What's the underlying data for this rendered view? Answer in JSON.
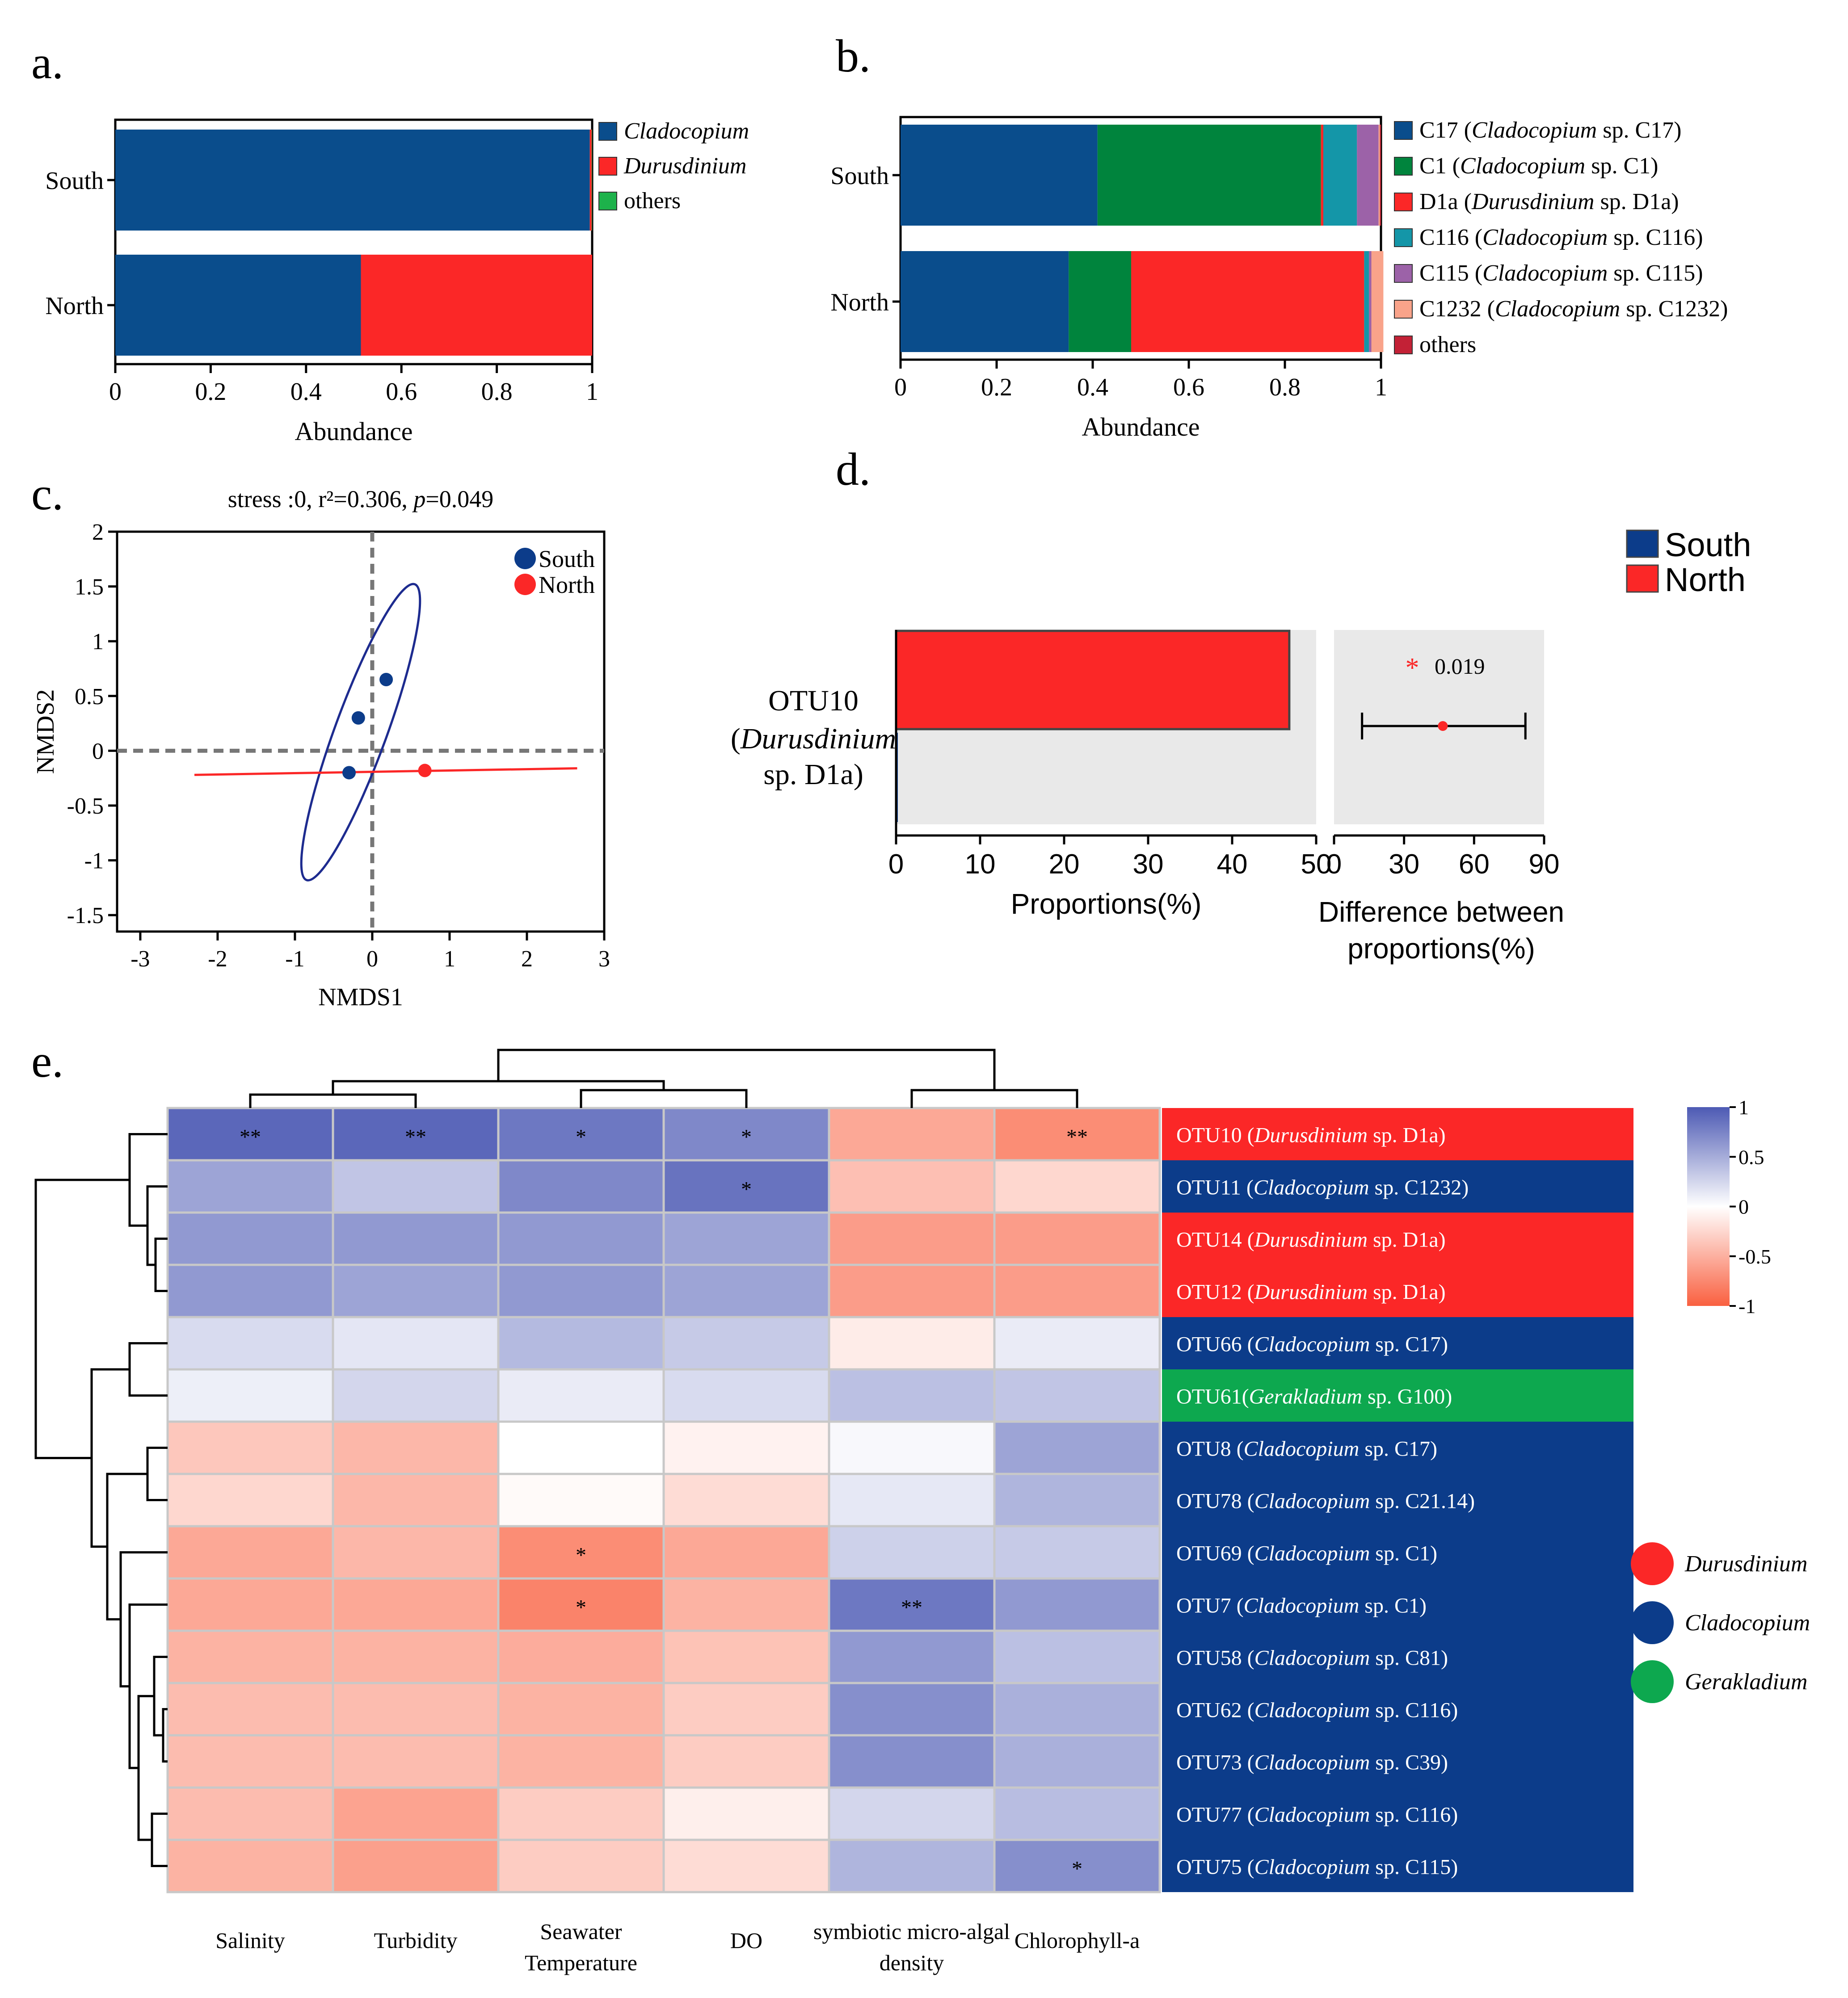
{
  "colors": {
    "blue": "#0a4d8c",
    "red": "#fb2727",
    "green": "#1db24b",
    "darkgreen": "#00843d",
    "teal": "#1496a8",
    "purple": "#9c62a8",
    "salmon": "#f9a38a",
    "darkred": "#c32136",
    "rowblue": "#0c3c8a",
    "rowgreen": "#0da84f",
    "panelgray": "#e9e9e9"
  },
  "chart_data": [
    {
      "panel": "a.",
      "type": "bar",
      "orientation": "horizontal-stacked",
      "categories": [
        "South",
        "North"
      ],
      "series": [
        {
          "name": "Cladocopium",
          "color_key": "blue",
          "values": [
            0.995,
            0.515
          ]
        },
        {
          "name": "Durusdinium",
          "color_key": "red",
          "values": [
            0.004,
            0.485
          ]
        },
        {
          "name": "others",
          "color_key": "green",
          "values": [
            0.001,
            0.0
          ]
        }
      ],
      "xlabel": "Abundance",
      "xticks": [
        "0",
        "0.2",
        "0.4",
        "0.6",
        "0.8",
        "1"
      ],
      "xlim": [
        0,
        1
      ]
    },
    {
      "panel": "b.",
      "type": "bar",
      "orientation": "horizontal-stacked",
      "categories": [
        "South",
        "North"
      ],
      "series": [
        {
          "name_main": "C17 (",
          "name_italic": "Cladocopium",
          "name_tail": " sp. C17)",
          "color_key": "blue",
          "values": [
            0.41,
            0.35
          ]
        },
        {
          "name_main": "C1 (",
          "name_italic": "Cladocopium",
          "name_tail": " sp. C1)",
          "color_key": "darkgreen",
          "values": [
            0.465,
            0.13
          ]
        },
        {
          "name_main": "D1a (",
          "name_italic": "Durusdinium",
          "name_tail": " sp. D1a)",
          "color_key": "red",
          "values": [
            0.005,
            0.485
          ]
        },
        {
          "name_main": "C116 (",
          "name_italic": "Cladocopium",
          "name_tail": " sp. C116)",
          "color_key": "teal",
          "values": [
            0.07,
            0.01
          ]
        },
        {
          "name_main": "C115 (",
          "name_italic": "Cladocopium",
          "name_tail": " sp. C115)",
          "color_key": "purple",
          "values": [
            0.045,
            0.005
          ]
        },
        {
          "name_main": "C1232 (",
          "name_italic": "Cladocopium",
          "name_tail": " sp. C1232)",
          "color_key": "salmon",
          "values": [
            0.003,
            0.025
          ]
        },
        {
          "name_main": "others",
          "name_italic": "",
          "name_tail": "",
          "color_key": "darkred",
          "values": [
            0.002,
            0.0
          ]
        }
      ],
      "xlabel": "Abundance",
      "xticks": [
        "0",
        "0.2",
        "0.4",
        "0.6",
        "0.8",
        "1"
      ],
      "xlim": [
        0,
        1
      ]
    },
    {
      "panel": "c.",
      "type": "scatter",
      "title_main": "stress :0, r²=0.306, ",
      "title_p": "p",
      "title_tail": "=0.049",
      "xlabel": "NMDS1",
      "ylabel": "NMDS2",
      "xlim": [
        -3.3,
        3
      ],
      "ylim": [
        -1.65,
        2
      ],
      "xticks": [
        -3,
        -2,
        -1,
        0,
        1,
        2,
        3
      ],
      "yticks": [
        -1.5,
        -1,
        -0.5,
        0,
        0.5,
        1,
        1.5,
        2
      ],
      "xtick_labels": [
        "-3",
        "-2",
        "-1",
        "0",
        "1",
        "2",
        "3"
      ],
      "ytick_labels": [
        "-1.5",
        "-1",
        "-0.5",
        "0",
        "0.5",
        "1",
        "1.5",
        "2"
      ],
      "groups": [
        {
          "name": "South",
          "color_key": "rowblue",
          "points": [
            [
              0.18,
              0.65
            ],
            [
              -0.18,
              0.3
            ],
            [
              -0.3,
              -0.2
            ]
          ]
        },
        {
          "name": "North",
          "color_key": "red",
          "points": [
            [
              0.68,
              -0.18
            ]
          ]
        }
      ],
      "south_ellipse": {
        "cx": -0.15,
        "cy": 0.17,
        "tip1": [
          0.55,
          1.52
        ],
        "tip2": [
          -0.85,
          -1.18
        ]
      },
      "north_line": {
        "from": [
          -2.3,
          -0.22
        ],
        "to": [
          2.65,
          -0.16
        ]
      }
    },
    {
      "panel": "d.",
      "type": "bar",
      "orientation": "horizontal",
      "categories": [
        "OTU10"
      ],
      "category_line1": "OTU10",
      "category_italic": "Durusdinium",
      "category_line3": "sp. D1a)",
      "series": [
        {
          "name": "South",
          "color_key": "rowblue",
          "values": [
            0.2
          ]
        },
        {
          "name": "North",
          "color_key": "red",
          "values": [
            46.8
          ]
        }
      ],
      "xlabel": "Proportions(%)",
      "xticks": [
        "0",
        "10",
        "20",
        "30",
        "40",
        "50"
      ],
      "xlim": [
        0,
        50
      ],
      "diff": {
        "estimate": 46.6,
        "ci_low": 12,
        "ci_high": 82,
        "p_value": "0.019",
        "star": "*",
        "xlim": [
          0,
          90
        ],
        "xticks": [
          "0",
          "30",
          "60",
          "90"
        ],
        "xlabel_line1": "Difference between",
        "xlabel_line2": "proportions(%)"
      }
    },
    {
      "panel": "e.",
      "type": "heatmap",
      "columns": [
        "Salinity",
        "Turbidity",
        "Seawater Temperature",
        "DO",
        "symbiotic micro-algal density",
        "Chlorophyll-a"
      ],
      "column_labels": [
        [
          "Salinity"
        ],
        [
          "Turbidity"
        ],
        [
          "Seawater",
          "Temperature"
        ],
        [
          "DO"
        ],
        [
          "symbiotic micro-algal",
          "density"
        ],
        [
          "Chlorophyll-a"
        ]
      ],
      "rows": [
        {
          "otu": "OTU10",
          "genus": "Durusdinium",
          "clade": "sp. D1a",
          "sep": " (",
          "group": "red"
        },
        {
          "otu": "OTU11",
          "genus": "Cladocopium",
          "clade": "sp. C1232",
          "sep": " (",
          "group": "rowblue"
        },
        {
          "otu": "OTU14",
          "genus": "Durusdinium",
          "clade": "sp. D1a",
          "sep": " (",
          "group": "red"
        },
        {
          "otu": "OTU12",
          "genus": "Durusdinium",
          "clade": "sp. D1a",
          "sep": " (",
          "group": "red"
        },
        {
          "otu": "OTU66",
          "genus": "Cladocopium",
          "clade": "sp. C17",
          "sep": " (",
          "group": "rowblue"
        },
        {
          "otu": "OTU61",
          "genus": "Gerakladium",
          "clade": "sp. G100",
          "sep": "(",
          "group": "rowgreen"
        },
        {
          "otu": "OTU8",
          "genus": "Cladocopium",
          "clade": "sp. C17",
          "sep": " (",
          "group": "rowblue"
        },
        {
          "otu": "OTU78",
          "genus": "Cladocopium",
          "clade": "sp. C21.14",
          "sep": " (",
          "group": "rowblue"
        },
        {
          "otu": "OTU69",
          "genus": "Cladocopium",
          "clade": "sp. C1",
          "sep": " (",
          "group": "rowblue"
        },
        {
          "otu": "OTU7",
          "genus": "Cladocopium",
          "clade": "sp. C1",
          "sep": " (",
          "group": "rowblue"
        },
        {
          "otu": "OTU58",
          "genus": "Cladocopium",
          "clade": "sp. C81",
          "sep": " (",
          "group": "rowblue"
        },
        {
          "otu": "OTU62",
          "genus": "Cladocopium",
          "clade": "sp. C116",
          "sep": " (",
          "group": "rowblue"
        },
        {
          "otu": "OTU73",
          "genus": "Cladocopium",
          "clade": "sp. C39",
          "sep": " (",
          "group": "rowblue"
        },
        {
          "otu": "OTU77",
          "genus": "Cladocopium",
          "clade": "sp. C116",
          "sep": " (",
          "group": "rowblue"
        },
        {
          "otu": "OTU75",
          "genus": "Cladocopium",
          "clade": "sp. C115",
          "sep": " (",
          "group": "rowblue"
        }
      ],
      "values": [
        [
          0.92,
          0.92,
          0.82,
          0.72,
          -0.55,
          -0.72
        ],
        [
          0.55,
          0.35,
          0.72,
          0.85,
          -0.4,
          -0.25
        ],
        [
          0.62,
          0.62,
          0.62,
          0.55,
          -0.62,
          -0.62
        ],
        [
          0.62,
          0.55,
          0.62,
          0.55,
          -0.62,
          -0.62
        ],
        [
          0.22,
          0.15,
          0.42,
          0.32,
          -0.12,
          0.12
        ],
        [
          0.1,
          0.25,
          0.12,
          0.22,
          0.38,
          0.35
        ],
        [
          -0.35,
          -0.45,
          0.0,
          -0.08,
          0.04,
          0.55
        ],
        [
          -0.25,
          -0.45,
          -0.03,
          -0.22,
          0.14,
          0.45
        ],
        [
          -0.55,
          -0.45,
          -0.72,
          -0.55,
          0.28,
          0.32
        ],
        [
          -0.55,
          -0.55,
          -0.78,
          -0.48,
          0.82,
          0.62
        ],
        [
          -0.48,
          -0.48,
          -0.52,
          -0.38,
          0.62,
          0.38
        ],
        [
          -0.42,
          -0.42,
          -0.48,
          -0.32,
          0.68,
          0.48
        ],
        [
          -0.42,
          -0.42,
          -0.48,
          -0.32,
          0.68,
          0.48
        ],
        [
          -0.42,
          -0.58,
          -0.32,
          -0.1,
          0.25,
          0.4
        ],
        [
          -0.48,
          -0.6,
          -0.32,
          -0.22,
          0.45,
          0.68
        ]
      ],
      "stars": [
        [
          "**",
          "**",
          "*",
          "*",
          "",
          "**"
        ],
        [
          "",
          "",
          "",
          "*",
          "",
          ""
        ],
        [
          "",
          "",
          "",
          "",
          "",
          ""
        ],
        [
          "",
          "",
          "",
          "",
          "",
          ""
        ],
        [
          "",
          "",
          "",
          "",
          "",
          ""
        ],
        [
          "",
          "",
          "",
          "",
          "",
          ""
        ],
        [
          "",
          "",
          "",
          "",
          "",
          ""
        ],
        [
          "",
          "",
          "",
          "",
          "",
          ""
        ],
        [
          "",
          "",
          "*",
          "",
          "",
          ""
        ],
        [
          "",
          "",
          "*",
          "",
          "**",
          ""
        ],
        [
          "",
          "",
          "",
          "",
          "",
          ""
        ],
        [
          "",
          "",
          "",
          "",
          "",
          ""
        ],
        [
          "",
          "",
          "",
          "",
          "",
          ""
        ],
        [
          "",
          "",
          "",
          "",
          "",
          ""
        ],
        [
          "",
          "",
          "",
          "",
          "",
          "*"
        ]
      ],
      "colorbar": {
        "min": -1,
        "max": 1,
        "ticks": [
          "1",
          "0.5",
          "0",
          "-0.5",
          "-1"
        ],
        "tick_values": [
          1,
          0.5,
          0,
          -0.5,
          -1
        ]
      },
      "genus_legend": [
        {
          "name": "Durusdinium",
          "color_key": "red"
        },
        {
          "name": "Cladocopium",
          "color_key": "rowblue"
        },
        {
          "name": "Gerakladium",
          "color_key": "rowgreen"
        }
      ]
    }
  ]
}
